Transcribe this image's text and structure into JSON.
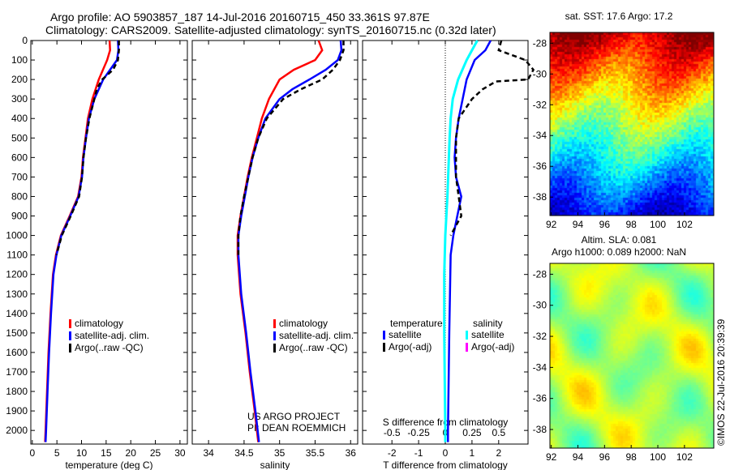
{
  "title_line1": "Argo profile: AO 5903857_187 14-Jul-2016 20160715_450 33.361S 97.87E",
  "title_line2": "Climatology: CARS2009. Satellite-adjusted climatology: synTS_20160715.nc (0.32d later)",
  "credit": "©IMOS 22-Jul-2016 20:39:39",
  "project_line1": "US ARGO PROJECT",
  "project_line2": "PI: DEAN ROEMMICH",
  "colors": {
    "climatology": "#ff0000",
    "satellite": "#0000ff",
    "argo": "#000000",
    "sal_satellite": "#00ffff",
    "sal_argo": "#ff00ff"
  },
  "chart_data": [
    {
      "type": "line",
      "name": "temperature",
      "xlabel": "temperature (deg C)",
      "xlim": [
        -0.3,
        31.5
      ],
      "ylim": [
        2070,
        0
      ],
      "xticks": [
        0,
        5,
        10,
        15,
        20,
        25,
        30
      ],
      "yticks": [
        0,
        100,
        200,
        300,
        400,
        500,
        600,
        700,
        800,
        900,
        1000,
        1100,
        1200,
        1300,
        1400,
        1500,
        1600,
        1700,
        1800,
        1900,
        2000
      ],
      "legend": [
        "climatology",
        "satellite-adj. clim.",
        "Argo(..raw -QC)"
      ],
      "series": [
        {
          "name": "climatology",
          "depth": [
            0,
            50,
            100,
            200,
            300,
            400,
            500,
            600,
            700,
            800,
            900,
            1000,
            1100,
            1200,
            1400,
            1600,
            1800,
            2000,
            2060
          ],
          "values": [
            15.7,
            15.8,
            15.2,
            13.5,
            12.2,
            11.3,
            10.8,
            10.3,
            10.0,
            9.3,
            7.6,
            5.8,
            4.8,
            4.2,
            3.7,
            3.3,
            3.0,
            2.7,
            2.6
          ]
        },
        {
          "name": "satellite-adj. clim.",
          "depth": [
            0,
            50,
            100,
            200,
            300,
            400,
            500,
            600,
            700,
            800,
            900,
            1000,
            1100,
            1200,
            1400,
            1600,
            1800,
            2000,
            2060
          ],
          "values": [
            17.4,
            17.5,
            17.2,
            14.4,
            12.6,
            11.5,
            10.9,
            10.4,
            10.1,
            9.4,
            7.7,
            5.9,
            4.9,
            4.3,
            3.8,
            3.4,
            3.1,
            2.8,
            2.7
          ]
        },
        {
          "name": "Argo(..raw -QC)",
          "depth": [
            0,
            50,
            100,
            150,
            200,
            250,
            300,
            400,
            500,
            600,
            700,
            800,
            900,
            1000,
            1100
          ],
          "values": [
            17.6,
            17.6,
            17.4,
            16.4,
            14.2,
            13.1,
            12.6,
            11.6,
            10.9,
            10.4,
            10.1,
            9.5,
            7.8,
            6.0,
            4.9
          ]
        }
      ]
    },
    {
      "type": "line",
      "name": "salinity",
      "xlabel": "salinity",
      "xlim": [
        33.77,
        36.1
      ],
      "ylim": [
        2070,
        0
      ],
      "xticks": [
        34,
        34.5,
        35,
        35.5,
        36
      ],
      "legend": [
        "climatology",
        "satellite-adj. clim.",
        "Argo(..raw -QC)"
      ],
      "series": [
        {
          "name": "climatology",
          "depth": [
            0,
            50,
            100,
            150,
            200,
            300,
            400,
            500,
            600,
            700,
            800,
            900,
            1000,
            1100,
            1300,
            1500,
            1700,
            1900,
            2060
          ],
          "values": [
            35.55,
            35.6,
            35.5,
            35.2,
            35.0,
            34.85,
            34.75,
            34.68,
            34.61,
            34.55,
            34.5,
            34.45,
            34.41,
            34.41,
            34.45,
            34.52,
            34.58,
            34.65,
            34.7
          ]
        },
        {
          "name": "satellite-adj. clim.",
          "depth": [
            0,
            50,
            100,
            150,
            200,
            250,
            300,
            400,
            500,
            600,
            700,
            800,
            900,
            1000,
            1100,
            1300,
            1500,
            1700,
            1900,
            2060
          ],
          "values": [
            35.86,
            35.87,
            35.82,
            35.65,
            35.42,
            35.18,
            35.0,
            34.8,
            34.7,
            34.62,
            34.56,
            34.51,
            34.46,
            34.42,
            34.42,
            34.46,
            34.53,
            34.59,
            34.66,
            34.71
          ]
        },
        {
          "name": "Argo(..raw -QC)",
          "depth": [
            0,
            50,
            100,
            150,
            200,
            250,
            300,
            400,
            500,
            600,
            700,
            800,
            900,
            1000,
            1100
          ],
          "values": [
            35.9,
            35.9,
            35.85,
            35.75,
            35.6,
            35.3,
            35.05,
            34.82,
            34.7,
            34.62,
            34.56,
            34.5,
            34.45,
            34.42,
            34.42
          ]
        }
      ]
    },
    {
      "type": "line",
      "name": "difference",
      "xlabel": "T difference from climatology",
      "xlabel2": "S difference from climatology",
      "xlim": [
        -3.1,
        3.1
      ],
      "xticks": [
        -2,
        -1,
        0,
        1,
        2
      ],
      "s_xlim": [
        -0.775,
        0.775
      ],
      "s_xticks": [
        -0.5,
        -0.25,
        0,
        0.25,
        0.5
      ],
      "ylim": [
        2070,
        0
      ],
      "legend_temperature": "temperature",
      "legend_salinity": "salinity",
      "legend_items": [
        "satellite",
        "Argo(-adj)"
      ],
      "series": [
        {
          "name": "T satellite",
          "depth": [
            0,
            50,
            100,
            200,
            300,
            400,
            500,
            600,
            700,
            800,
            900,
            1000,
            1100,
            1500,
            2000,
            2060
          ],
          "values": [
            1.7,
            1.5,
            1.1,
            0.8,
            0.65,
            0.5,
            0.4,
            0.35,
            0.4,
            0.6,
            0.45,
            0.3,
            0.2,
            0.15,
            0.1,
            0.1
          ]
        },
        {
          "name": "T Argo(-adj)",
          "depth": [
            0,
            50,
            80,
            100,
            150,
            200,
            210,
            250,
            300,
            400,
            500,
            600,
            700,
            800,
            900,
            1000
          ],
          "values": [
            2.1,
            2.0,
            2.6,
            3.0,
            3.3,
            3.1,
            1.9,
            1.4,
            1.0,
            0.5,
            0.4,
            0.4,
            0.4,
            0.5,
            0.6,
            0.2
          ]
        },
        {
          "name": "S satellite",
          "depth": [
            0,
            50,
            100,
            200,
            300,
            400,
            500,
            800,
            1000,
            1200,
            1500,
            2000,
            2060
          ],
          "values": [
            0.3,
            0.25,
            0.2,
            0.12,
            0.07,
            0.05,
            0.04,
            0.02,
            0.0,
            -0.01,
            -0.01,
            0.0,
            0.0
          ]
        }
      ]
    },
    {
      "type": "heatmap",
      "name": "sst-map",
      "title": "sat. SST: 17.6  Argo: 17.2",
      "xticks": [
        92,
        94,
        96,
        98,
        100,
        102
      ],
      "yticks": [
        -28,
        -30,
        -32,
        -34,
        -36,
        -38
      ],
      "xlim": [
        91.9,
        104.2
      ],
      "ylim": [
        -39.2,
        -27.3
      ]
    },
    {
      "type": "heatmap",
      "name": "sla-map",
      "title1": "Altim. SLA: 0.081",
      "title2": "Argo h1000: 0.089 h2000: NaN",
      "xticks": [
        92,
        94,
        96,
        98,
        100,
        102
      ],
      "yticks": [
        -28,
        -30,
        -32,
        -34,
        -36,
        -38
      ],
      "xlim": [
        91.9,
        104.2
      ],
      "ylim": [
        -39.2,
        -27.3
      ]
    }
  ]
}
